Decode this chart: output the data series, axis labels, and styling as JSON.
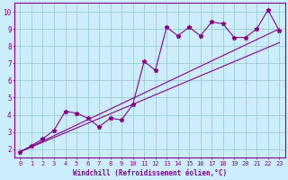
{
  "x_data": [
    0,
    1,
    2,
    3,
    4,
    5,
    6,
    7,
    8,
    9,
    10,
    11,
    12,
    13,
    14,
    15,
    16,
    17,
    18,
    19,
    20,
    21,
    22,
    23
  ],
  "y_scatter": [
    1.85,
    2.2,
    2.6,
    3.1,
    4.2,
    4.1,
    3.8,
    3.3,
    3.8,
    3.7,
    4.6,
    7.1,
    6.6,
    9.1,
    8.6,
    9.1,
    8.6,
    9.4,
    9.3,
    8.5,
    8.5,
    9.0,
    10.1,
    8.9
  ],
  "y_line1_start": 1.85,
  "y_line1_end": 9.0,
  "y_line2_start": 1.85,
  "y_line2_end": 8.2,
  "xlim": [
    -0.5,
    23.5
  ],
  "ylim": [
    1.5,
    10.5
  ],
  "xticks": [
    0,
    1,
    2,
    3,
    4,
    5,
    6,
    7,
    8,
    9,
    10,
    11,
    12,
    13,
    14,
    15,
    16,
    17,
    18,
    19,
    20,
    21,
    22,
    23
  ],
  "yticks": [
    2,
    3,
    4,
    5,
    6,
    7,
    8,
    9,
    10
  ],
  "xlabel": "Windchill (Refroidissement éolien,°C)",
  "line_color": "#880088",
  "bg_color": "#cceeff",
  "grid_color": "#99cccc",
  "marker": "*",
  "marker_size": 3.5,
  "line_width": 0.8,
  "tick_fontsize": 5.0,
  "xlabel_fontsize": 5.5
}
